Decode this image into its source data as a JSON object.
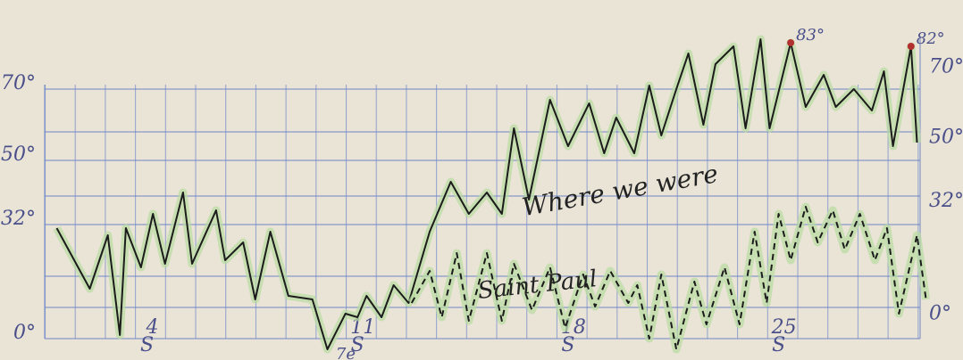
{
  "chart_data": {
    "type": "line",
    "xlim": [
      0.6,
      30
    ],
    "ylim": [
      0,
      85
    ],
    "y2lim": [
      -7,
      79
    ],
    "yticks": [
      {
        "value": 0,
        "label": "0°"
      },
      {
        "value": 32,
        "label": "32°"
      },
      {
        "value": 50,
        "label": "50°"
      },
      {
        "value": 70,
        "label": "70°"
      }
    ],
    "y2ticks": [
      {
        "value": 0,
        "label": "0°"
      },
      {
        "value": 32,
        "label": "32°"
      },
      {
        "value": 50,
        "label": "50°"
      },
      {
        "value": 70,
        "label": "70°"
      }
    ],
    "xticks": [
      4,
      11,
      18,
      25
    ],
    "xtick_sublabels": [
      "S",
      "S",
      "S",
      "S"
    ],
    "grid": true,
    "series": [
      {
        "name": "Where we were",
        "color": "#1c1c1c",
        "style": "solid",
        "highlight": "#b8dca0",
        "x": [
          1.0,
          2.1,
          2.7,
          3.1,
          3.3,
          3.8,
          4.2,
          4.6,
          5.2,
          5.5,
          6.3,
          6.6,
          7.2,
          7.6,
          8.1,
          8.7,
          9.5,
          10.0,
          10.6,
          11.0,
          11.3,
          11.8,
          12.2,
          12.7,
          13.4,
          14.1,
          14.7,
          15.3,
          15.8,
          16.2,
          16.7,
          17.4,
          18.0,
          18.7,
          19.2,
          19.6,
          20.2,
          20.7,
          21.1,
          21.6,
          22.0,
          22.5,
          22.9,
          23.5,
          23.9,
          24.4,
          24.7,
          25.4,
          25.9,
          26.5,
          26.9,
          27.5,
          28.1,
          28.5,
          28.8,
          29.4,
          29.6
        ],
        "values": [
          31,
          14,
          29,
          1,
          31,
          20,
          35,
          21,
          41,
          21,
          36,
          22,
          27,
          11,
          30,
          12,
          11,
          -3,
          7,
          6,
          12,
          6,
          15,
          10,
          30,
          44,
          35,
          41,
          35,
          59,
          39,
          67,
          54,
          66,
          52,
          62,
          52,
          71,
          57,
          70,
          80,
          60,
          77,
          82,
          59,
          84,
          59,
          83,
          65,
          74,
          65,
          70,
          64,
          75,
          54,
          82,
          55
        ]
      },
      {
        "name": "Saint Paul",
        "color": "#1c1c1c",
        "style": "dashed",
        "highlight": "#b8dca0",
        "x": [
          12.8,
          13.4,
          13.8,
          14.3,
          14.7,
          15.3,
          15.8,
          16.2,
          16.8,
          17.4,
          17.9,
          18.5,
          18.9,
          19.4,
          20.0,
          20.3,
          20.7,
          21.1,
          21.6,
          22.2,
          22.6,
          23.2,
          23.7,
          24.2,
          24.6,
          25.0,
          25.4,
          25.9,
          26.3,
          26.8,
          27.2,
          27.7,
          28.2,
          28.6,
          29.0,
          29.6,
          29.9
        ],
        "values": [
          10,
          19,
          6,
          24,
          5,
          24,
          5,
          21,
          8,
          20,
          3,
          18,
          9,
          19,
          10,
          15,
          0,
          18,
          -3,
          16,
          4,
          20,
          4,
          30,
          10,
          35,
          22,
          37,
          27,
          36,
          25,
          35,
          22,
          31,
          7,
          29,
          11
        ]
      }
    ],
    "annotations": [
      {
        "text": "83°",
        "x": 25.4,
        "y": 83
      },
      {
        "text": "82°",
        "x": 29.4,
        "y": 82
      },
      {
        "text": "7e",
        "x": 10.1,
        "y": -5
      }
    ]
  }
}
